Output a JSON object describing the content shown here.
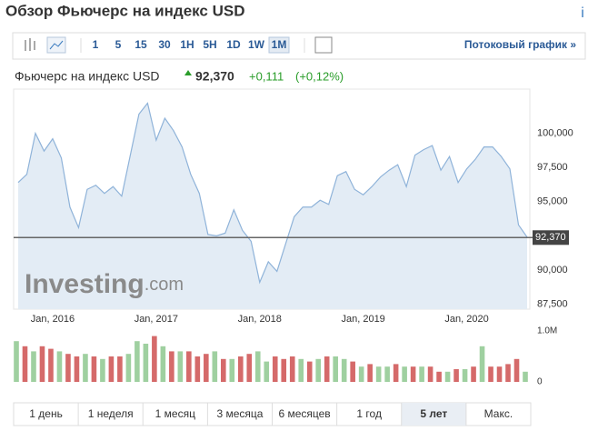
{
  "header": {
    "title": "Обзор Фьючерс на индекс USD",
    "info": "i"
  },
  "toolbar": {
    "intervals": [
      "1",
      "5",
      "15",
      "30",
      "1H",
      "5H",
      "1D",
      "1W",
      "1M"
    ],
    "selected": 8,
    "streaming": "Потоковый график »"
  },
  "quote": {
    "name": "Фьючерс на индекс USD",
    "change": "+0,111",
    "change_pct": "(+0,12%)"
  },
  "chart_data": [
    {
      "type": "line",
      "color": "#8fb3d9",
      "fill": "#e3ecf5",
      "categories": [
        null,
        null,
        null,
        null,
        "Jan, 2016",
        null,
        null,
        null,
        null,
        null,
        null,
        null,
        null,
        null,
        null,
        null,
        "Jan, 2017",
        null,
        null,
        null,
        null,
        null,
        null,
        null,
        null,
        null,
        null,
        null,
        "Jan, 2018",
        null,
        null,
        null,
        null,
        null,
        null,
        null,
        null,
        null,
        null,
        null,
        "Jan, 2019",
        null,
        null,
        null,
        null,
        null,
        null,
        null,
        null,
        null,
        null,
        null,
        "Jan, 2020",
        null,
        null,
        null,
        null,
        null,
        null,
        null
      ],
      "values": [
        96.4,
        97.0,
        100.0,
        98.7,
        99.6,
        98.2,
        94.6,
        93.1,
        95.9,
        96.2,
        95.6,
        96.1,
        95.4,
        98.4,
        101.4,
        102.2,
        99.5,
        101.1,
        100.2,
        99.0,
        97.0,
        95.6,
        92.6,
        92.5,
        92.7,
        94.4,
        92.9,
        92.1,
        89.1,
        90.6,
        89.9,
        91.9,
        93.9,
        94.6,
        94.6,
        95.1,
        94.8,
        96.9,
        97.2,
        95.9,
        95.5,
        96.1,
        96.8,
        97.3,
        97.7,
        96.1,
        98.4,
        98.8,
        99.1,
        97.3,
        98.3,
        96.4,
        97.4,
        98.1,
        99.0,
        99.0,
        98.3,
        97.4,
        93.3,
        92.4
      ],
      "last": {
        "value": 92.37,
        "label": "92,370"
      },
      "ylim": [
        87.4,
        103.1
      ],
      "yticks": [
        {
          "value": 87.5,
          "label": "87,500"
        },
        {
          "value": 90,
          "label": "90,000"
        },
        {
          "value": 92.5,
          "label": "92,500"
        },
        {
          "value": 95,
          "label": "95,000"
        },
        {
          "value": 97.5,
          "label": "97,500"
        },
        {
          "value": 100,
          "label": "100,000"
        }
      ],
      "hidden_tick": 2,
      "watermark": [
        "Investing",
        ".com"
      ]
    },
    {
      "type": "bar",
      "values": [
        0.8,
        0.7,
        0.6,
        0.7,
        0.65,
        0.6,
        0.55,
        0.5,
        0.55,
        0.5,
        0.45,
        0.5,
        0.5,
        0.55,
        0.8,
        0.75,
        0.9,
        0.7,
        0.6,
        0.6,
        0.6,
        0.5,
        0.55,
        0.6,
        0.45,
        0.45,
        0.5,
        0.55,
        0.6,
        0.4,
        0.5,
        0.45,
        0.5,
        0.45,
        0.4,
        0.45,
        0.5,
        0.5,
        0.45,
        0.4,
        0.3,
        0.35,
        0.3,
        0.3,
        0.35,
        0.3,
        0.3,
        0.3,
        0.3,
        0.2,
        0.2,
        0.25,
        0.25,
        0.3,
        0.7,
        0.3,
        0.3,
        0.35,
        0.45,
        0.2
      ],
      "colors": [
        "#9fd0a0",
        "#d56a6a",
        "#9fd0a0",
        "#d56a6a",
        "#d56a6a",
        "#9fd0a0",
        "#d56a6a",
        "#d56a6a",
        "#9fd0a0",
        "#d56a6a",
        "#9fd0a0",
        "#d56a6a",
        "#d56a6a",
        "#9fd0a0",
        "#9fd0a0",
        "#9fd0a0",
        "#d56a6a",
        "#9fd0a0",
        "#d56a6a",
        "#9fd0a0",
        "#d56a6a",
        "#d56a6a",
        "#d56a6a",
        "#9fd0a0",
        "#d56a6a",
        "#9fd0a0",
        "#d56a6a",
        "#d56a6a",
        "#9fd0a0",
        "#9fd0a0",
        "#d56a6a",
        "#d56a6a",
        "#d56a6a",
        "#9fd0a0",
        "#d56a6a",
        "#9fd0a0",
        "#d56a6a",
        "#9fd0a0",
        "#9fd0a0",
        "#d56a6a",
        "#9fd0a0",
        "#d56a6a",
        "#9fd0a0",
        "#9fd0a0",
        "#d56a6a",
        "#9fd0a0",
        "#d56a6a",
        "#9fd0a0",
        "#d56a6a",
        "#d56a6a",
        "#9fd0a0",
        "#d56a6a",
        "#9fd0a0",
        "#d56a6a",
        "#9fd0a0",
        "#d56a6a",
        "#d56a6a",
        "#d56a6a",
        "#d56a6a",
        "#9fd0a0"
      ],
      "ylim": [
        0,
        1.0
      ],
      "yticks": [
        0,
        {
          "value": 1,
          "label": "1.0M"
        }
      ]
    }
  ],
  "periods": {
    "items": [
      "1 день",
      "1 неделя",
      "1 месяц",
      "3 месяца",
      "6 месяцев",
      "1 год",
      "5 лет",
      "Макс."
    ],
    "selected": 6
  }
}
